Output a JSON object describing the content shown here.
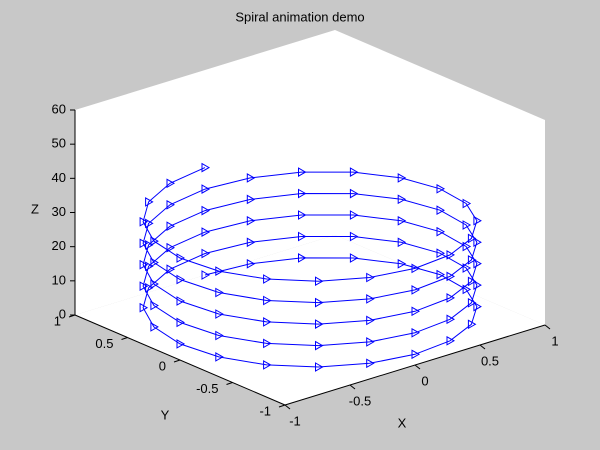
{
  "chart_data": {
    "type": "line3d",
    "title": "Spiral animation demo",
    "xlabel": "X",
    "ylabel": "Y",
    "zlabel": "Z",
    "color": "#0000ff",
    "x": [
      0,
      0.309,
      0.588,
      0.809,
      0.951,
      1,
      0.951,
      0.809,
      0.588,
      0.309,
      0,
      -0.309,
      -0.588,
      -0.809,
      -0.951,
      -1,
      -0.951,
      -0.809,
      -0.588,
      -0.309,
      0,
      0.309,
      0.588,
      0.809,
      0.951,
      1,
      0.951,
      0.809,
      0.588,
      0.309,
      0,
      -0.309,
      -0.588,
      -0.809,
      -0.951,
      -1,
      -0.951,
      -0.809,
      -0.588,
      -0.309,
      0,
      0.309,
      0.588,
      0.809,
      0.951,
      1,
      0.951,
      0.809,
      0.588,
      0.309,
      0,
      -0.309,
      -0.588,
      -0.809,
      -0.951,
      -1,
      -0.951,
      -0.809,
      -0.588,
      -0.309,
      0,
      0.309,
      0.588,
      0.809,
      0.951,
      1,
      0.951,
      0.809,
      0.588,
      0.309,
      0,
      -0.309,
      -0.588,
      -0.809,
      -0.951,
      -1,
      -0.951,
      -0.809,
      -0.588,
      -0.309,
      0,
      0.309,
      0.588,
      0.809,
      0.951,
      1,
      0.951,
      0.809,
      0.588,
      0.309,
      0,
      -0.309,
      -0.588,
      -0.809,
      -0.951,
      -1,
      -0.951,
      -0.809,
      -0.588,
      -0.309,
      0
    ],
    "y": [
      1,
      0.951,
      0.809,
      0.588,
      0.309,
      0,
      -0.309,
      -0.588,
      -0.809,
      -0.951,
      -1,
      -0.951,
      -0.809,
      -0.588,
      -0.309,
      0,
      0.309,
      0.588,
      0.809,
      0.951,
      1,
      0.951,
      0.809,
      0.588,
      0.309,
      0,
      -0.309,
      -0.588,
      -0.809,
      -0.951,
      -1,
      -0.951,
      -0.809,
      -0.588,
      -0.309,
      0,
      0.309,
      0.588,
      0.809,
      0.951,
      1,
      0.951,
      0.809,
      0.588,
      0.309,
      0,
      -0.309,
      -0.588,
      -0.809,
      -0.951,
      -1,
      -0.951,
      -0.809,
      -0.588,
      -0.309,
      0,
      0.309,
      0.588,
      0.809,
      0.951,
      1,
      0.951,
      0.809,
      0.588,
      0.309,
      0,
      -0.309,
      -0.588,
      -0.809,
      -0.951,
      -1,
      -0.951,
      -0.809,
      -0.588,
      -0.309,
      0,
      0.309,
      0.588,
      0.809,
      0.951,
      1,
      0.951,
      0.809,
      0.588,
      0.309,
      0,
      -0.309,
      -0.588,
      -0.809,
      -0.951,
      -1,
      -0.951,
      -0.809,
      -0.588,
      -0.309,
      0,
      0.309,
      0.588,
      0.809,
      0.951,
      1
    ],
    "z": [
      0,
      0.31,
      0.63,
      0.94,
      1.26,
      1.57,
      1.88,
      2.2,
      2.51,
      2.83,
      3.14,
      3.46,
      3.77,
      4.08,
      4.4,
      4.71,
      5.03,
      5.34,
      5.65,
      5.97,
      6.28,
      6.6,
      6.91,
      7.23,
      7.54,
      7.85,
      8.17,
      8.48,
      8.8,
      9.11,
      9.42,
      9.74,
      10.05,
      10.37,
      10.68,
      11.0,
      11.31,
      11.62,
      11.94,
      12.25,
      12.57,
      12.88,
      13.19,
      13.51,
      13.82,
      14.14,
      14.45,
      14.77,
      15.08,
      15.39,
      15.71,
      16.02,
      16.34,
      16.65,
      16.96,
      17.28,
      17.59,
      17.91,
      18.22,
      18.54,
      18.85,
      19.16,
      19.48,
      19.79,
      20.11,
      20.42,
      20.73,
      21.05,
      21.36,
      21.68,
      21.99,
      22.31,
      22.62,
      22.93,
      23.25,
      23.56,
      23.88,
      24.19,
      24.5,
      24.82,
      25.13,
      25.45,
      25.76,
      26.08,
      26.39,
      26.7,
      27.02,
      27.33,
      27.65,
      27.96,
      28.27,
      28.59,
      28.9,
      29.22,
      29.53,
      29.85,
      30.16,
      30.47,
      30.79,
      31.1,
      31.42
    ],
    "xlim": [
      -1,
      1
    ],
    "ylim": [
      -1,
      1
    ],
    "zlim": [
      0,
      60
    ],
    "xticks": [
      -1,
      -0.5,
      0,
      0.5,
      1
    ],
    "yticks": [
      -1,
      -0.5,
      0,
      0.5,
      1
    ],
    "zticks": [
      0,
      10,
      20,
      30,
      40,
      50,
      60
    ]
  }
}
